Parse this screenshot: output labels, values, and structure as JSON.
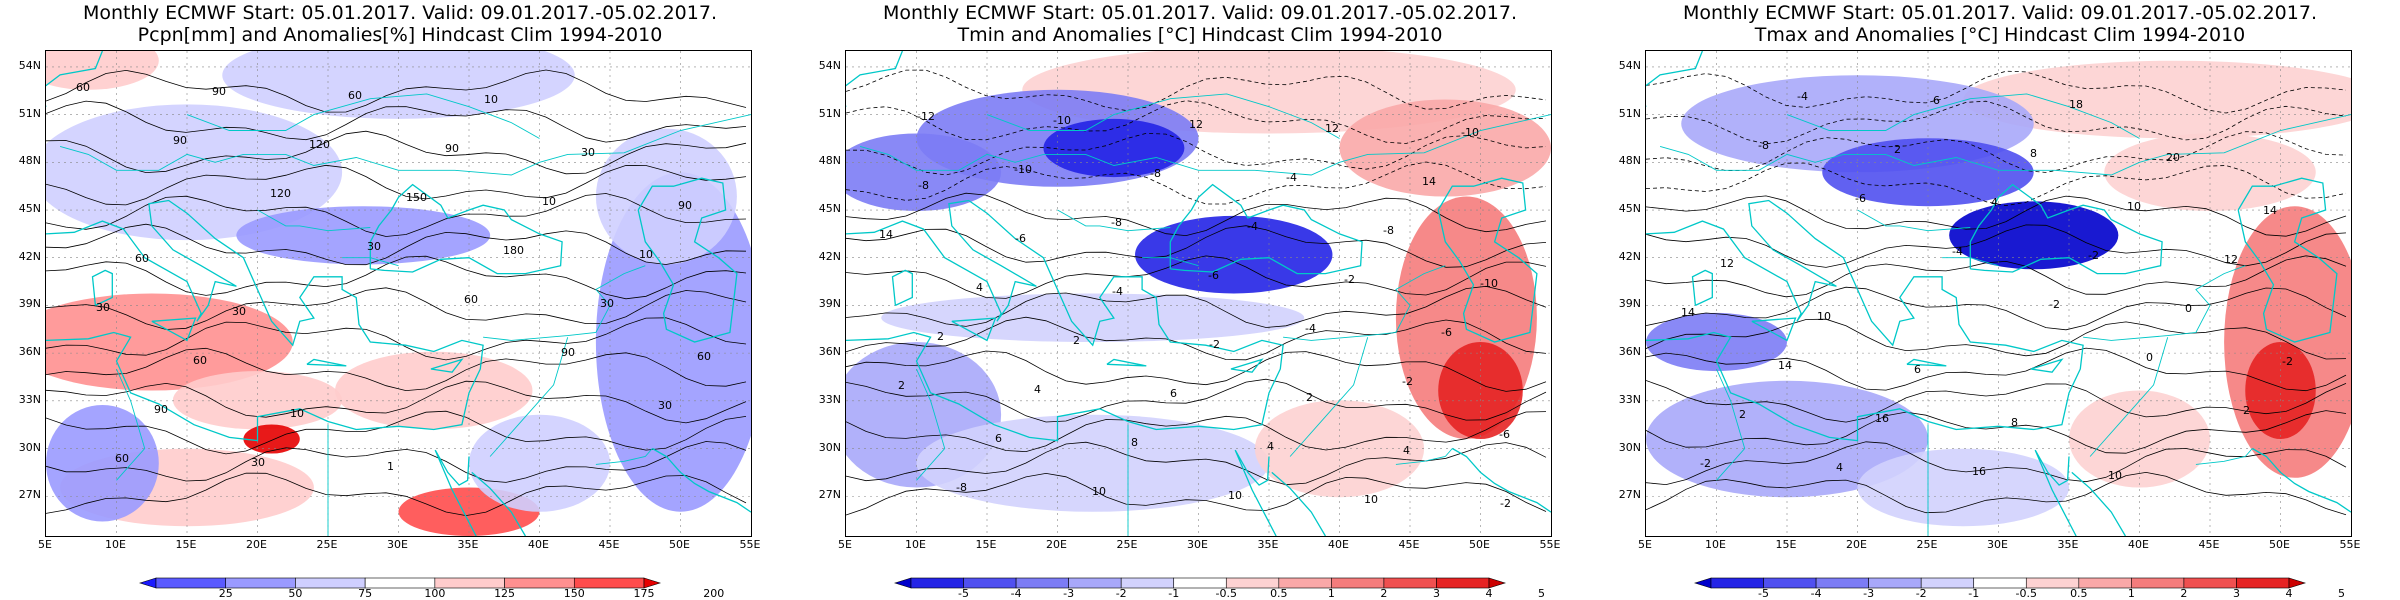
{
  "panels": [
    {
      "title_line1": "Monthly ECMWF Start: 05.01.2017. Valid: 09.01.2017.-05.02.2017.",
      "title_line2": "Pcpn[mm] and Anomalies[%] Hindcast Clim 1994-2010",
      "colorbar_labels": [
        "25",
        "50",
        "75",
        "100",
        "125",
        "150",
        "175",
        "200"
      ],
      "colorbar_colors": [
        "#1a1aff",
        "#5a5aff",
        "#9a9aff",
        "#cfcfff",
        "#ffffff",
        "#ffcccc",
        "#ff9090",
        "#ff4c4c",
        "#e60000"
      ],
      "contour_labels": [
        "60",
        "90",
        "120",
        "30",
        "60",
        "90",
        "30",
        "60",
        "90",
        "120",
        "150",
        "180",
        "30",
        "60",
        "90",
        "30",
        "60",
        "90",
        "10",
        "10",
        "30",
        "60",
        "10",
        "1",
        "10",
        "30",
        "90",
        "60",
        "30"
      ]
    },
    {
      "title_line1": "Monthly ECMWF Start: 05.01.2017. Valid: 09.01.2017.-05.02.2017.",
      "title_line2": "Tmin and Anomalies [°C] Hindcast Clim 1994-2010",
      "colorbar_labels": [
        "-5",
        "-4",
        "-3",
        "-2",
        "-1",
        "-0.5",
        "0.5",
        "1",
        "2",
        "3",
        "4",
        "5"
      ],
      "colorbar_colors": [
        "#0000cc",
        "#2424e6",
        "#5050f0",
        "#7c7cf5",
        "#a8a8fa",
        "#d2d2fd",
        "#ffffff",
        "#fdd2d2",
        "#faa8a8",
        "#f57c7c",
        "#f05050",
        "#e62424",
        "#cc0000"
      ],
      "contour_labels": [
        "-12",
        "-10",
        "-8",
        "-6",
        "-4",
        "-2",
        "-6",
        "-8",
        "-10",
        "-8",
        "-4",
        "-2",
        "-6",
        "2",
        "6",
        "10",
        "12",
        "-4",
        "-8",
        "-10",
        "2",
        "4",
        "8",
        "10",
        "12",
        "14",
        "14",
        "4",
        "2",
        "6",
        "4",
        "10",
        "-10",
        "-8",
        "-6",
        "-4",
        "-2",
        "2",
        "4",
        "-2"
      ]
    },
    {
      "title_line1": "Monthly ECMWF Start: 05.01.2017. Valid: 09.01.2017.-05.02.2017.",
      "title_line2": "Tmax and Anomalies [°C] Hindcast Clim 1994-2010",
      "colorbar_labels": [
        "-5",
        "-4",
        "-3",
        "-2",
        "-1",
        "-0.5",
        "0.5",
        "1",
        "2",
        "3",
        "4",
        "5"
      ],
      "colorbar_colors": [
        "#0000cc",
        "#2424e6",
        "#5050f0",
        "#7c7cf5",
        "#a8a8fa",
        "#d2d2fd",
        "#ffffff",
        "#fdd2d2",
        "#faa8a8",
        "#f57c7c",
        "#f05050",
        "#e62424",
        "#cc0000"
      ],
      "contour_labels": [
        "-8",
        "-6",
        "-4",
        "-2",
        "0",
        "2",
        "-2",
        "-4",
        "2",
        "4",
        "-2",
        "0",
        "-2",
        "2",
        "4",
        "6",
        "8",
        "10",
        "12",
        "14",
        "14",
        "16",
        "16",
        "18",
        "20",
        "14",
        "12",
        "10",
        "6",
        "8",
        "10"
      ]
    }
  ],
  "lat_labels": [
    "54N",
    "51N",
    "48N",
    "45N",
    "42N",
    "39N",
    "36N",
    "33N",
    "30N",
    "27N"
  ],
  "lon_labels": [
    "5E",
    "10E",
    "15E",
    "20E",
    "25E",
    "30E",
    "35E",
    "40E",
    "45E",
    "50E",
    "55E"
  ],
  "colors": {
    "coastline": "#00c8c8",
    "contour": "#000000",
    "grid": "#888888"
  }
}
